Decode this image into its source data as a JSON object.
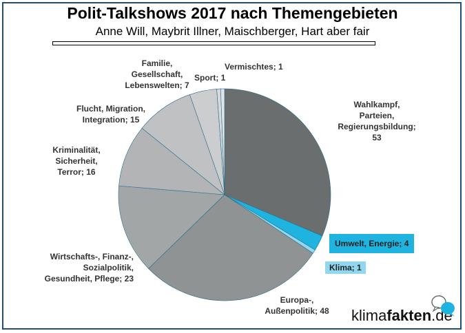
{
  "header": {
    "title": "Polit-Talkshows 2017 nach Themengebieten",
    "subtitle": "Anne Will, Maybrit Illner, Maischberger, Hart aber fair"
  },
  "chart_data": {
    "type": "pie",
    "title": "Polit-Talkshows 2017 nach Themengebieten",
    "subtitle": "Anne Will, Maybrit Illner, Maischberger, Hart aber fair",
    "slices": [
      {
        "label": "Wahlkampf, Parteien, Regierungsbildung",
        "value": 53,
        "color": "#6b6e6e",
        "text_lines": [
          "Wahlkampf,",
          "Parteien,",
          "Regierungsbildung;",
          "53"
        ]
      },
      {
        "label": "Umwelt, Energie",
        "value": 4,
        "color": "#1fb3e0",
        "text_lines": [
          "Umwelt, Energie; 4"
        ]
      },
      {
        "label": "Klima",
        "value": 1,
        "color": "#8fd8ef",
        "text_lines": [
          "Klima; 1"
        ]
      },
      {
        "label": "Europa-, Außenpolitik",
        "value": 48,
        "color": "#8f9394",
        "text_lines": [
          "Europa-,",
          "Außenpolitik; 48"
        ]
      },
      {
        "label": "Wirtschafts-, Finanz-, Sozialpolitik, Gesundheit, Pflege",
        "value": 23,
        "color": "#a3a6a7",
        "text_lines": [
          "Wirtschafts-, Finanz-,",
          "Sozialpolitik,",
          "Gesundheit, Pflege; 23"
        ]
      },
      {
        "label": "Kriminalität, Sicherheit, Terror",
        "value": 16,
        "color": "#b2b4b5",
        "text_lines": [
          "Kriminalität,",
          "Sicherheit,",
          "Terror; 16"
        ]
      },
      {
        "label": "Flucht, Migration, Integration",
        "value": 15,
        "color": "#bfc1c2",
        "text_lines": [
          "Flucht, Migration,",
          "Integration; 15"
        ]
      },
      {
        "label": "Familie, Gesellschaft, Lebenswelten",
        "value": 7,
        "color": "#cbcdce",
        "text_lines": [
          "Familie,",
          "Gesellschaft,",
          "Lebenswelten; 7"
        ]
      },
      {
        "label": "Sport",
        "value": 1,
        "color": "#d6d8d9",
        "text_lines": [
          "Sport; 1"
        ]
      },
      {
        "label": "Vermischtes",
        "value": 1,
        "color": "#e1e3e4",
        "text_lines": [
          "Vermischtes; 1"
        ]
      }
    ],
    "legend": "none"
  },
  "logo": {
    "text_normal_1": "klima",
    "text_bold": "fakten",
    "text_normal_2": ".de"
  }
}
